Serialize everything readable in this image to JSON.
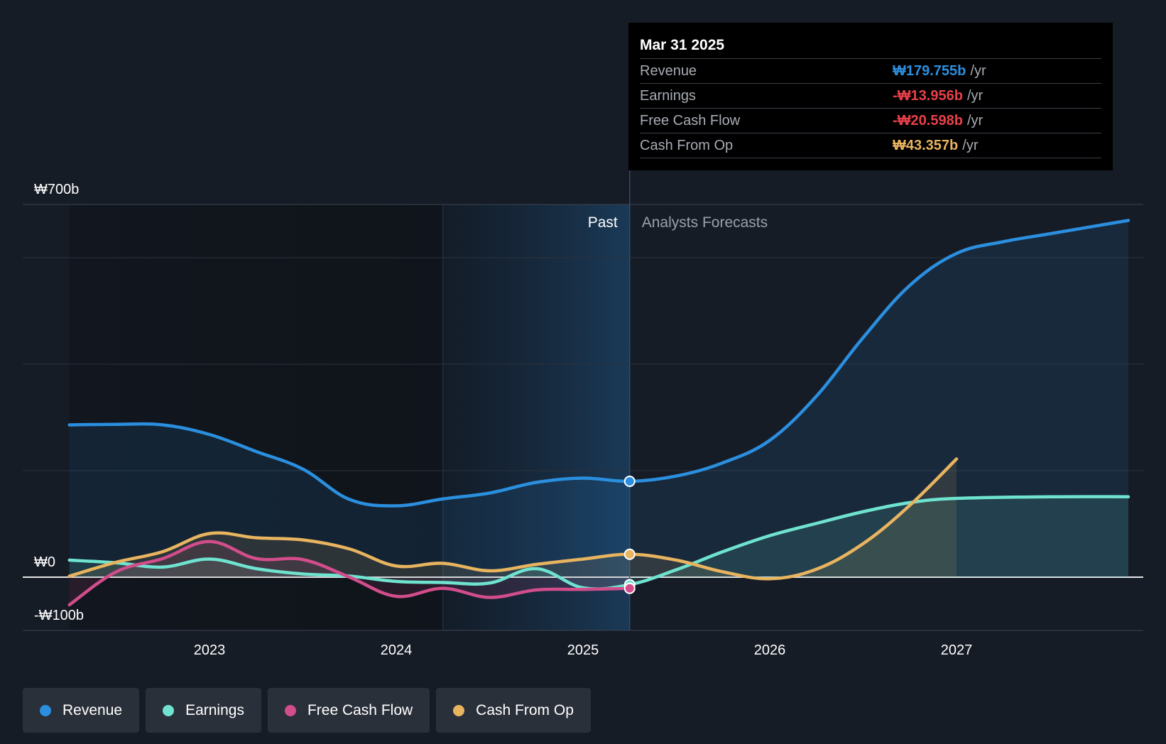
{
  "chart_data": {
    "type": "line",
    "x_range": [
      2022.25,
      2027.92
    ],
    "ylim": [
      -100,
      700
    ],
    "y_tick_labels": [
      {
        "value": 700,
        "label": "₩700b"
      },
      {
        "value": 0,
        "label": "₩0"
      },
      {
        "value": -100,
        "label": "-₩100b"
      }
    ],
    "gridlines": [
      700,
      600,
      400,
      200,
      0,
      -100
    ],
    "x_ticks": [
      {
        "value": 2023,
        "label": "2023"
      },
      {
        "value": 2024,
        "label": "2024"
      },
      {
        "value": 2025,
        "label": "2025"
      },
      {
        "value": 2026,
        "label": "2026"
      },
      {
        "value": 2027,
        "label": "2027"
      }
    ],
    "past_label": "Past",
    "forecast_label": "Analysts Forecasts",
    "divider_x": 2025.25,
    "highlight_start_x": 2024.25,
    "series": [
      {
        "name": "Revenue",
        "color": "#2b8fdf",
        "fill_to": 2027.92,
        "x": [
          2022.25,
          2022.5,
          2022.75,
          2023.0,
          2023.25,
          2023.5,
          2023.75,
          2024.0,
          2024.25,
          2024.5,
          2024.75,
          2025.0,
          2025.25,
          2025.5,
          2025.75,
          2026.0,
          2026.25,
          2026.5,
          2026.75,
          2027.0,
          2027.25,
          2027.5,
          2027.92
        ],
        "values": [
          286,
          287,
          286,
          268,
          236,
          203,
          146,
          134,
          147,
          158,
          178,
          186,
          180,
          190,
          215,
          257,
          340,
          450,
          548,
          608,
          630,
          645,
          670
        ]
      },
      {
        "name": "Earnings",
        "color": "#6fe3d0",
        "fill_to": 2027.92,
        "x": [
          2022.25,
          2022.5,
          2022.75,
          2023.0,
          2023.25,
          2023.5,
          2023.75,
          2024.0,
          2024.25,
          2024.5,
          2024.75,
          2025.0,
          2025.25,
          2025.5,
          2025.75,
          2026.0,
          2026.25,
          2026.5,
          2026.75,
          2027.0,
          2027.5,
          2027.92
        ],
        "values": [
          32,
          27,
          19,
          34,
          16,
          6,
          2,
          -8,
          -10,
          -11,
          16,
          -20,
          -14,
          14,
          48,
          78,
          101,
          123,
          140,
          148,
          151,
          151
        ]
      },
      {
        "name": "Free Cash Flow",
        "color": "#d24d8b",
        "fill_to": 2025.25,
        "x": [
          2022.25,
          2022.5,
          2022.75,
          2023.0,
          2023.25,
          2023.5,
          2023.75,
          2024.0,
          2024.25,
          2024.5,
          2024.75,
          2025.0,
          2025.25
        ],
        "values": [
          -52,
          10,
          35,
          67,
          35,
          33,
          0,
          -36,
          -21,
          -38,
          -24,
          -23,
          -21
        ]
      },
      {
        "name": "Cash From Op",
        "color": "#e8b45f",
        "fill_to": 2027.0,
        "x": [
          2022.25,
          2022.5,
          2022.75,
          2023.0,
          2023.25,
          2023.5,
          2023.75,
          2024.0,
          2024.25,
          2024.5,
          2024.75,
          2025.0,
          2025.25,
          2025.5,
          2025.75,
          2026.0,
          2026.25,
          2026.5,
          2026.75,
          2027.0
        ],
        "values": [
          2,
          28,
          48,
          82,
          74,
          70,
          53,
          21,
          26,
          12,
          24,
          34,
          43,
          32,
          10,
          -3,
          15,
          63,
          135,
          222
        ]
      }
    ],
    "markers": [
      {
        "series": "Revenue",
        "x": 2025.25,
        "y": 180
      },
      {
        "series": "Cash From Op",
        "x": 2025.25,
        "y": 43
      },
      {
        "series": "Earnings",
        "x": 2025.25,
        "y": -14
      },
      {
        "series": "Free Cash Flow",
        "x": 2025.25,
        "y": -21
      }
    ]
  },
  "tooltip": {
    "date": "Mar 31 2025",
    "rows": [
      {
        "label": "Revenue",
        "value": "₩179.755b",
        "unit": "/yr",
        "color": "#2b8fdf"
      },
      {
        "label": "Earnings",
        "value": "-₩13.956b",
        "unit": "/yr",
        "color": "#e8404a"
      },
      {
        "label": "Free Cash Flow",
        "value": "-₩20.598b",
        "unit": "/yr",
        "color": "#e8404a"
      },
      {
        "label": "Cash From Op",
        "value": "₩43.357b",
        "unit": "/yr",
        "color": "#e8b45f"
      }
    ]
  },
  "legend": [
    {
      "label": "Revenue",
      "color": "#2b8fdf"
    },
    {
      "label": "Earnings",
      "color": "#6fe3d0"
    },
    {
      "label": "Free Cash Flow",
      "color": "#d24d8b"
    },
    {
      "label": "Cash From Op",
      "color": "#e8b45f"
    }
  ]
}
